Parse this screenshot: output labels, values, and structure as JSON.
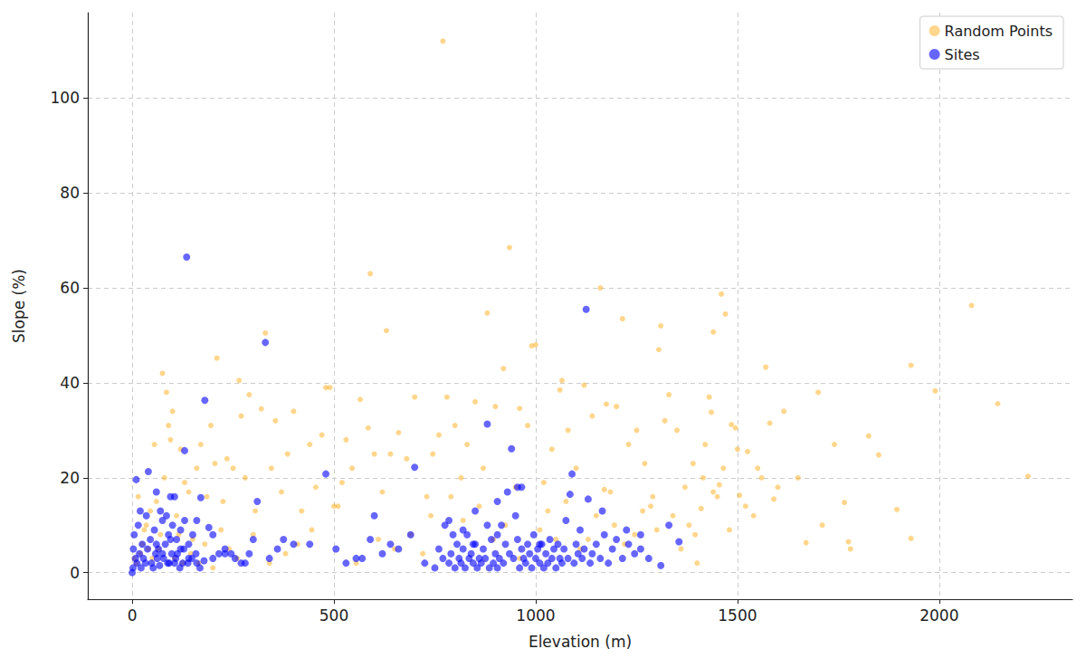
{
  "chart_data": {
    "type": "scatter",
    "x_label": "Elevation (m)",
    "y_label": "Slope (%)",
    "xlim": [
      -110,
      2330
    ],
    "xticks": [
      0,
      500,
      1000,
      1500,
      2000
    ],
    "ylim": [
      -5.6,
      118
    ],
    "yticks": [
      0,
      20,
      40,
      60,
      80,
      100
    ],
    "grid": true,
    "legend": "upper right",
    "series": [
      {
        "name": "Random Points",
        "color": "#ffa500",
        "marker": "circle",
        "x": [
          770,
          935,
          590,
          1160,
          1460,
          2080,
          880,
          1470,
          1215,
          1310,
          1440,
          330,
          630,
          1305,
          1000,
          210,
          1930,
          1570,
          920,
          75,
          265,
          1065,
          1990,
          1700,
          480,
          2145,
          2220,
          1895,
          1930,
          1775,
          1780,
          1670,
          1765,
          1710,
          1740,
          1850,
          1825,
          1615,
          1580,
          1590,
          1560,
          1525,
          1540,
          1505,
          1500,
          1495,
          1485,
          1465,
          1455,
          1440,
          1430,
          1435,
          1420,
          1400,
          1410,
          1390,
          1370,
          1350,
          1330,
          1320,
          1290,
          1270,
          1250,
          1230,
          1200,
          1185,
          1175,
          1140,
          1120,
          1100,
          1080,
          1060,
          1040,
          1020,
          990,
          980,
          960,
          950,
          900,
          870,
          850,
          830,
          815,
          800,
          780,
          760,
          745,
          730,
          700,
          680,
          660,
          640,
          620,
          600,
          585,
          565,
          545,
          530,
          510,
          490,
          470,
          455,
          440,
          420,
          400,
          385,
          370,
          355,
          345,
          320,
          305,
          290,
          280,
          270,
          250,
          235,
          225,
          205,
          195,
          185,
          170,
          160,
          150,
          140,
          130,
          120,
          110,
          100,
          95,
          90,
          85,
          80,
          70,
          60,
          55,
          45,
          40,
          30,
          20,
          15,
          10,
          5,
          25,
          35,
          50,
          65,
          105,
          115,
          125,
          145,
          165,
          180,
          200,
          220,
          240,
          260,
          300,
          340,
          380,
          410,
          445,
          500,
          520,
          555,
          610,
          650,
          690,
          720,
          740,
          790,
          820,
          860,
          895,
          925,
          960,
          1010,
          1030,
          1050,
          1075,
          1110,
          1130,
          1150,
          1170,
          1195,
          1220,
          1245,
          1265,
          1285,
          1300,
          1340,
          1360,
          1380,
          1395,
          1415,
          1450,
          1480,
          1520,
          1550,
          1600,
          1650
        ],
        "values": [
          112,
          68.5,
          63,
          60,
          58.7,
          56.3,
          54.7,
          54.5,
          53.5,
          52,
          50.7,
          50.5,
          51,
          47,
          48,
          45.2,
          43.7,
          43.3,
          43,
          42,
          40.5,
          40.5,
          38.3,
          38,
          39,
          35.6,
          20.3,
          13.3,
          7.2,
          6.5,
          5,
          6.3,
          14.8,
          10,
          27,
          24.8,
          28.8,
          34,
          31.5,
          15.5,
          20,
          25.5,
          12,
          16.3,
          26,
          30.5,
          31.2,
          22,
          18.5,
          17,
          37,
          33.8,
          27,
          2,
          13.5,
          23,
          18,
          30,
          37.5,
          32,
          16,
          23,
          30,
          27,
          35,
          17,
          35.5,
          33,
          39.5,
          22,
          30,
          38.5,
          26,
          19,
          47.8,
          31,
          34.6,
          18,
          35,
          22,
          36,
          27,
          20,
          31,
          37,
          29,
          25,
          16,
          37,
          24,
          29.5,
          25,
          17,
          25,
          30.5,
          36.5,
          22,
          28,
          14,
          39,
          29,
          18,
          27,
          13,
          34,
          25,
          17,
          32,
          22,
          34.5,
          13,
          37.5,
          20,
          33,
          22,
          24,
          15,
          23,
          31,
          16,
          27,
          22,
          7,
          17,
          19,
          26,
          12,
          34,
          28,
          31,
          38,
          20,
          8,
          15,
          27,
          13,
          5,
          9,
          4,
          16,
          2,
          3,
          6,
          10,
          3,
          5,
          3,
          8,
          2,
          4,
          2,
          6,
          1,
          9,
          5,
          3,
          8,
          2,
          4,
          6,
          9,
          14,
          19,
          2,
          7,
          5,
          8,
          4,
          12,
          16,
          11,
          14,
          7,
          10,
          3,
          9,
          13,
          7,
          15,
          5,
          7,
          12,
          17.5,
          10,
          6,
          8,
          13,
          14,
          9,
          12,
          5,
          10,
          8,
          20,
          16,
          9,
          14,
          22,
          18,
          20
        ]
      },
      {
        "name": "Sites",
        "color": "#0000ff",
        "marker": "circle",
        "x": [
          135,
          330,
          1125,
          180,
          130,
          880,
          940,
          700,
          1090,
          480,
          40,
          10,
          60,
          95,
          105,
          70,
          20,
          85,
          130,
          160,
          5,
          15,
          25,
          35,
          45,
          55,
          65,
          75,
          90,
          100,
          110,
          120,
          140,
          150,
          170,
          190,
          200,
          215,
          230,
          245,
          2,
          8,
          12,
          18,
          28,
          38,
          48,
          58,
          68,
          78,
          88,
          98,
          108,
          118,
          128,
          138,
          148,
          158,
          168,
          178,
          0,
          3,
          22,
          33,
          52,
          62,
          82,
          92,
          112,
          125,
          255,
          270,
          290,
          300,
          310,
          340,
          360,
          375,
          400,
          440,
          505,
          530,
          555,
          570,
          590,
          600,
          620,
          640,
          660,
          690,
          725,
          750,
          760,
          770,
          775,
          785,
          790,
          800,
          805,
          810,
          815,
          820,
          825,
          830,
          835,
          840,
          845,
          850,
          855,
          860,
          865,
          870,
          875,
          885,
          890,
          895,
          900,
          905,
          910,
          915,
          920,
          925,
          930,
          935,
          945,
          950,
          955,
          960,
          965,
          970,
          975,
          980,
          985,
          990,
          995,
          1000,
          1005,
          1010,
          1015,
          1020,
          1025,
          1030,
          1035,
          1040,
          1045,
          1050,
          1055,
          1060,
          1065,
          1070,
          1080,
          1085,
          1095,
          1100,
          1105,
          1110,
          1115,
          1120,
          1130,
          1135,
          1140,
          1150,
          1160,
          1170,
          1180,
          1190,
          1200,
          1215,
          1230,
          1245,
          1260,
          1280,
          1310,
          1330,
          1355,
          1225,
          1260,
          955,
          905,
          850,
          795,
          820,
          880,
          965,
          1010,
          1165,
          785,
          845,
          905,
          1075,
          60,
          75,
          95,
          105,
          120,
          140,
          160,
          200,
          230,
          280
        ],
        "values": [
          66.5,
          48.5,
          55.5,
          36.3,
          25.7,
          31.3,
          26.1,
          22.2,
          20.8,
          20.8,
          21.3,
          19.6,
          17,
          16,
          16,
          13,
          13,
          12,
          11,
          11,
          8,
          10,
          6,
          12,
          7,
          9,
          5,
          11,
          8,
          10,
          7,
          9,
          6,
          8,
          15.8,
          9.5,
          8,
          4,
          5,
          4,
          1,
          3,
          2,
          4,
          3,
          5,
          2,
          4,
          1.5,
          3,
          2,
          4,
          3,
          1,
          5,
          2,
          3,
          4,
          1,
          2.5,
          0,
          5,
          1,
          2,
          1,
          3,
          6,
          2,
          4,
          2,
          3,
          2,
          4,
          7,
          15,
          3,
          5,
          7,
          6,
          6,
          5,
          2,
          3,
          3,
          7,
          12,
          4,
          6,
          5,
          8,
          2,
          1,
          5,
          3,
          10,
          2,
          4,
          1,
          6,
          3,
          2,
          5,
          1,
          8,
          3,
          4,
          2,
          6,
          1,
          3,
          2,
          5,
          3,
          1,
          7,
          2,
          4,
          1,
          3,
          10,
          2,
          6,
          17,
          4,
          3,
          12,
          7,
          1,
          5,
          3,
          2,
          6,
          4,
          1,
          8,
          3,
          5,
          2,
          6,
          1,
          4,
          2,
          7,
          3,
          5,
          1,
          6,
          3,
          2,
          5,
          3,
          16.5,
          2,
          6,
          4,
          9,
          3,
          5,
          15.5,
          2,
          4,
          6,
          3,
          8,
          2,
          5,
          7,
          3,
          6,
          4,
          8,
          3,
          1.5,
          10,
          6.5,
          9,
          5,
          18,
          15,
          13,
          8,
          9,
          10,
          18,
          6,
          13,
          11,
          6,
          8,
          11,
          6,
          4,
          7,
          2,
          5,
          3,
          2,
          3,
          4,
          2
        ]
      }
    ]
  }
}
